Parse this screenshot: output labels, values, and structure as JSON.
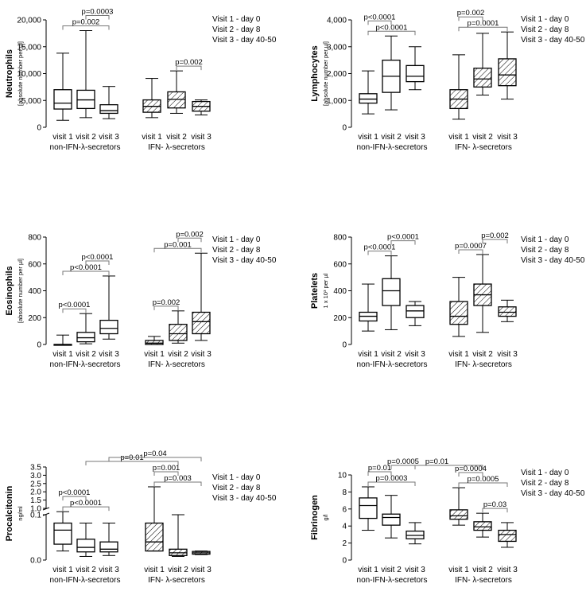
{
  "chart_data": [
    {
      "type": "boxplot",
      "ylabel": "Neutrophils",
      "ylabel_sub": "[absolute number per µl]",
      "yticks": [
        "0",
        "5,000",
        "10,000",
        "15,000",
        "20,000"
      ],
      "tick_values": [
        0,
        5000,
        10000,
        15000,
        20000
      ],
      "ylim": [
        0,
        20000
      ],
      "categories": [
        "visit 1",
        "visit 2",
        "visit 3",
        "visit 1",
        "visit 2",
        "visit 3"
      ],
      "groups": [
        "non-IFN-λ-secretors",
        "IFN- λ-secretors"
      ],
      "legend": [
        "Visit 1 - day 0",
        "Visit 2 - day 8",
        "Visit 3 - day 40-50"
      ],
      "boxes": [
        {
          "min": 1300,
          "q1": 3400,
          "median": 4500,
          "q3": 7000,
          "max": 13800
        },
        {
          "min": 1800,
          "q1": 3500,
          "median": 5100,
          "q3": 6900,
          "max": 18000
        },
        {
          "min": 1600,
          "q1": 2600,
          "median": 3100,
          "q3": 4200,
          "max": 7600
        },
        {
          "min": 1800,
          "q1": 2800,
          "median": 3900,
          "q3": 5100,
          "max": 9100
        },
        {
          "min": 2600,
          "q1": 3600,
          "median": 5200,
          "q3": 6600,
          "max": 10500
        },
        {
          "min": 2300,
          "q1": 3000,
          "median": 3900,
          "q3": 4800,
          "max": 5100
        }
      ],
      "brackets": [
        {
          "label": "p=0.002",
          "from": 0,
          "to": 2
        },
        {
          "label": "p=0.0003",
          "from": 1,
          "to": 2
        },
        {
          "label": "p=0.002",
          "from": 4,
          "to": 5
        }
      ]
    },
    {
      "type": "boxplot",
      "ylabel": "Lymphocytes",
      "ylabel_sub": "[absolute number per µl]",
      "yticks": [
        "0",
        "1,000",
        "2,000",
        "3,000",
        "4,000"
      ],
      "tick_values": [
        0,
        1000,
        2000,
        3000,
        4000
      ],
      "ylim": [
        0,
        4000
      ],
      "categories": [
        "visit 1",
        "visit 2",
        "visit 3",
        "visit 1",
        "visit 2",
        "visit 3"
      ],
      "groups": [
        "non-IFN-λ-secretors",
        "IFN- λ-secretors"
      ],
      "legend": [
        "Visit 1 - day 0",
        "Visit 2 - day 8",
        "Visit 3 - day 40-50"
      ],
      "boxes": [
        {
          "min": 500,
          "q1": 900,
          "median": 1050,
          "q3": 1250,
          "max": 2100
        },
        {
          "min": 650,
          "q1": 1300,
          "median": 1900,
          "q3": 2500,
          "max": 3400
        },
        {
          "min": 1400,
          "q1": 1700,
          "median": 1900,
          "q3": 2300,
          "max": 3000
        },
        {
          "min": 300,
          "q1": 700,
          "median": 1050,
          "q3": 1400,
          "max": 2700
        },
        {
          "min": 1200,
          "q1": 1500,
          "median": 1800,
          "q3": 2200,
          "max": 3500
        },
        {
          "min": 1050,
          "q1": 1550,
          "median": 1950,
          "q3": 2550,
          "max": 3550
        }
      ],
      "brackets": [
        {
          "label": "p<0.0001",
          "from": 0,
          "to": 2
        },
        {
          "label": "p<0.0001",
          "from": 0,
          "to": 1
        },
        {
          "label": "p=0.0001",
          "from": 3,
          "to": 5
        },
        {
          "label": "p=0.002",
          "from": 3,
          "to": 4
        }
      ]
    },
    {
      "type": "boxplot",
      "ylabel": "Eosinophils",
      "ylabel_sub": "[absolute number per µl]",
      "yticks": [
        "0",
        "200",
        "400",
        "600",
        "800"
      ],
      "tick_values": [
        0,
        200,
        400,
        600,
        800
      ],
      "ylim": [
        0,
        800
      ],
      "categories": [
        "visit 1",
        "visit 2",
        "visit 3",
        "visit 1",
        "visit 2",
        "visit 3"
      ],
      "groups": [
        "non-IFN-λ-secretors",
        "IFN- λ-secretors"
      ],
      "legend": [
        "Visit 1 - day 0",
        "Visit 2 - day 8",
        "Visit 3 - day 40-50"
      ],
      "boxes": [
        {
          "min": 0,
          "q1": 0,
          "median": 0,
          "q3": 0,
          "max": 70
        },
        {
          "min": 5,
          "q1": 20,
          "median": 50,
          "q3": 90,
          "max": 230
        },
        {
          "min": 40,
          "q1": 80,
          "median": 120,
          "q3": 180,
          "max": 510
        },
        {
          "min": 0,
          "q1": 0,
          "median": 10,
          "q3": 30,
          "max": 60
        },
        {
          "min": 10,
          "q1": 30,
          "median": 80,
          "q3": 150,
          "max": 250
        },
        {
          "min": 30,
          "q1": 80,
          "median": 170,
          "q3": 240,
          "max": 680
        }
      ],
      "brackets": [
        {
          "label": "p<0.0001",
          "from": 0,
          "to": 2
        },
        {
          "label": "p<0.0001",
          "from": 0,
          "to": 1
        },
        {
          "label": "p<0.0001",
          "from": 1,
          "to": 2
        },
        {
          "label": "p=0.001",
          "from": 3,
          "to": 5
        },
        {
          "label": "p=0.002",
          "from": 4,
          "to": 5
        },
        {
          "label": "p=0.002",
          "from": 3,
          "to": 4
        }
      ]
    },
    {
      "type": "boxplot",
      "ylabel": "Platelets",
      "ylabel_sub": "1 x 10³ per µl",
      "yticks": [
        "0",
        "200",
        "400",
        "600",
        "800"
      ],
      "tick_values": [
        0,
        200,
        400,
        600,
        800
      ],
      "ylim": [
        0,
        800
      ],
      "categories": [
        "visit 1",
        "visit 2",
        "visit 3",
        "visit 1",
        "visit 2",
        "visit 3"
      ],
      "groups": [
        "non-IFN-λ-secretors",
        "IFN- λ-secretors"
      ],
      "legend": [
        "Visit 1 - day 0",
        "Visit 2 - day 8",
        "Visit 3 - day 40-50"
      ],
      "boxes": [
        {
          "min": 100,
          "q1": 175,
          "median": 210,
          "q3": 240,
          "max": 450
        },
        {
          "min": 110,
          "q1": 290,
          "median": 400,
          "q3": 490,
          "max": 660
        },
        {
          "min": 140,
          "q1": 200,
          "median": 250,
          "q3": 290,
          "max": 320
        },
        {
          "min": 60,
          "q1": 150,
          "median": 210,
          "q3": 320,
          "max": 500
        },
        {
          "min": 90,
          "q1": 290,
          "median": 370,
          "q3": 450,
          "max": 670
        },
        {
          "min": 170,
          "q1": 210,
          "median": 240,
          "q3": 280,
          "max": 330
        }
      ],
      "brackets": [
        {
          "label": "p<0.0001",
          "from": 0,
          "to": 1
        },
        {
          "label": "p<0.0001",
          "from": 1,
          "to": 2
        },
        {
          "label": "p=0.0007",
          "from": 3,
          "to": 4
        },
        {
          "label": "p=0.002",
          "from": 4,
          "to": 5
        }
      ]
    },
    {
      "type": "boxplot",
      "ylabel": "Procalcitonin",
      "ylabel_sub": "ng/ml",
      "yticks": [
        "0.0",
        "0.1",
        "1.0",
        "1.5",
        "2.0",
        "2.5",
        "3.0",
        "3.5"
      ],
      "tick_values": [
        0,
        0.1,
        1,
        1.5,
        2,
        2.5,
        3,
        3.5
      ],
      "ylim": [
        0,
        3.5
      ],
      "axis_break": true,
      "categories": [
        "visit 1",
        "visit 2",
        "visit 3",
        "visit 1",
        "visit 2",
        "visit 3"
      ],
      "groups": [
        "non-IFN-λ-secretors",
        "IFN- λ-secretors"
      ],
      "legend": [
        "Visit 1 - day 0",
        "Visit 2 - day 8",
        "Visit 3 - day 40-50"
      ],
      "boxes": [
        {
          "min": 0.02,
          "q1": 0.035,
          "median": 0.066,
          "q3": 0.11,
          "max": 0.8
        },
        {
          "min": 0.008,
          "q1": 0.018,
          "median": 0.028,
          "q3": 0.046,
          "max": 0.11
        },
        {
          "min": 0.01,
          "q1": 0.018,
          "median": 0.024,
          "q3": 0.04,
          "max": 0.11
        },
        {
          "min": 0.02,
          "q1": 0.02,
          "median": 0.04,
          "q3": 0.11,
          "max": 2.3
        },
        {
          "min": 0.008,
          "q1": 0.01,
          "median": 0.016,
          "q3": 0.024,
          "max": 0.1
        },
        {
          "min": 0.012,
          "q1": 0.013,
          "median": 0.016,
          "q3": 0.019,
          "max": 0.02
        }
      ],
      "brackets": [
        {
          "label": "p=0.003",
          "from": 3,
          "to": 5
        },
        {
          "label": "p=0.001",
          "from": 3,
          "to": 4
        },
        {
          "label": "p<0.0001",
          "from": 0,
          "to": 2
        },
        {
          "label": "p<0.0001",
          "from": 0,
          "to": 1
        },
        {
          "label": "p=0.01",
          "from": 1,
          "to": 4
        },
        {
          "label": "p=0.04",
          "from": 2,
          "to": 5
        }
      ]
    },
    {
      "type": "boxplot",
      "ylabel": "Fibrinogen",
      "ylabel_sub": "g/l",
      "yticks": [
        "0",
        "2",
        "4",
        "6",
        "8",
        "10"
      ],
      "tick_values": [
        0,
        2,
        4,
        6,
        8,
        10
      ],
      "ylim": [
        0,
        10
      ],
      "categories": [
        "visit 1",
        "visit 2",
        "visit 3",
        "visit 1",
        "visit 2",
        "visit 3"
      ],
      "groups": [
        "non-IFN-λ-secretors",
        "IFN- λ-secretors"
      ],
      "legend": [
        "Visit 1 - day 0",
        "Visit 2 - day 8",
        "Visit 3 - day 40-50"
      ],
      "boxes": [
        {
          "min": 3.5,
          "q1": 4.9,
          "median": 6.4,
          "q3": 7.3,
          "max": 8.6
        },
        {
          "min": 2.6,
          "q1": 4.1,
          "median": 5.0,
          "q3": 5.4,
          "max": 7.6
        },
        {
          "min": 1.9,
          "q1": 2.5,
          "median": 2.9,
          "q3": 3.4,
          "max": 4.4
        },
        {
          "min": 4.1,
          "q1": 4.8,
          "median": 5.2,
          "q3": 5.9,
          "max": 8.5
        },
        {
          "min": 2.7,
          "q1": 3.5,
          "median": 3.9,
          "q3": 4.5,
          "max": 5.5
        },
        {
          "min": 1.5,
          "q1": 2.2,
          "median": 3.0,
          "q3": 3.5,
          "max": 4.4
        }
      ],
      "brackets": [
        {
          "label": "p=0.0003",
          "from": 0,
          "to": 2
        },
        {
          "label": "p=0.01",
          "from": 0,
          "to": 1
        },
        {
          "label": "p=0.0005",
          "from": 1,
          "to": 2
        },
        {
          "label": "p=0.0005",
          "from": 3,
          "to": 5
        },
        {
          "label": "p=0.0004",
          "from": 3,
          "to": 4
        },
        {
          "label": "p=0.01",
          "from": 1,
          "to": 4
        },
        {
          "label": "p=0.03",
          "from": 4,
          "to": 5
        }
      ]
    }
  ]
}
